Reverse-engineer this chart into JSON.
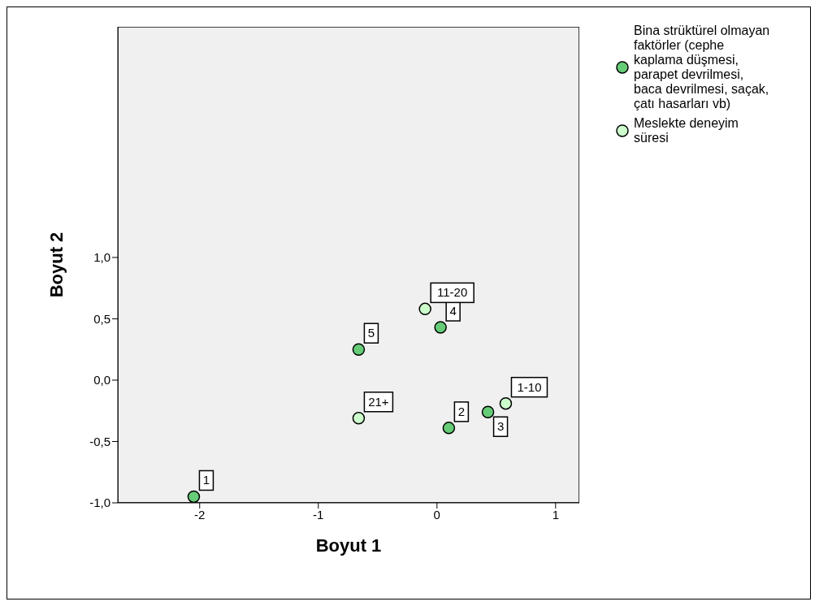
{
  "chart_data": {
    "type": "scatter",
    "xlabel": "Boyut 1",
    "ylabel": "Boyut 2",
    "xlim": [
      -2.69,
      1.2
    ],
    "ylim": [
      -1,
      2.88
    ],
    "xticks": [
      -2,
      -1,
      0,
      1
    ],
    "yticks": [
      {
        "value": -1,
        "label": "-1,0"
      },
      {
        "value": -0.5,
        "label": "-0,5"
      },
      {
        "value": 0,
        "label": "0,0"
      },
      {
        "value": 0.5,
        "label": "0,5"
      },
      {
        "value": 1,
        "label": "1,0"
      }
    ],
    "series": [
      {
        "name": "Bina strüktürel olmayan faktörler (cephe kaplama düşmesi, parapet devrilmesi, baca devrilmesi, saçak, çatı hasarları vb)",
        "color": "#66cc77",
        "x": [
          -2.05,
          0.1,
          0.43,
          0.03,
          -0.66
        ],
        "values": [
          -0.95,
          -0.39,
          -0.26,
          0.43,
          0.25
        ]
      },
      {
        "name": "Meslekte deneyim süresi",
        "color": "#ccffcc",
        "x": [
          0.58,
          -0.1,
          -0.66
        ],
        "values": [
          -0.19,
          0.58,
          -0.31
        ]
      }
    ],
    "annotations": [
      {
        "text": "1",
        "x": -2.05,
        "y": -0.95
      },
      {
        "text": "2",
        "x": 0.1,
        "y": -0.39
      },
      {
        "text": "3",
        "x": 0.43,
        "y": -0.26
      },
      {
        "text": "4",
        "x": 0.03,
        "y": 0.43
      },
      {
        "text": "5",
        "x": -0.66,
        "y": 0.25
      },
      {
        "text": "1-10",
        "x": 0.58,
        "y": -0.19
      },
      {
        "text": "11-20",
        "x": -0.1,
        "y": 0.58
      },
      {
        "text": "21+",
        "x": -0.66,
        "y": -0.31
      }
    ],
    "marker": "circle",
    "legend": "top right",
    "grid": false
  }
}
